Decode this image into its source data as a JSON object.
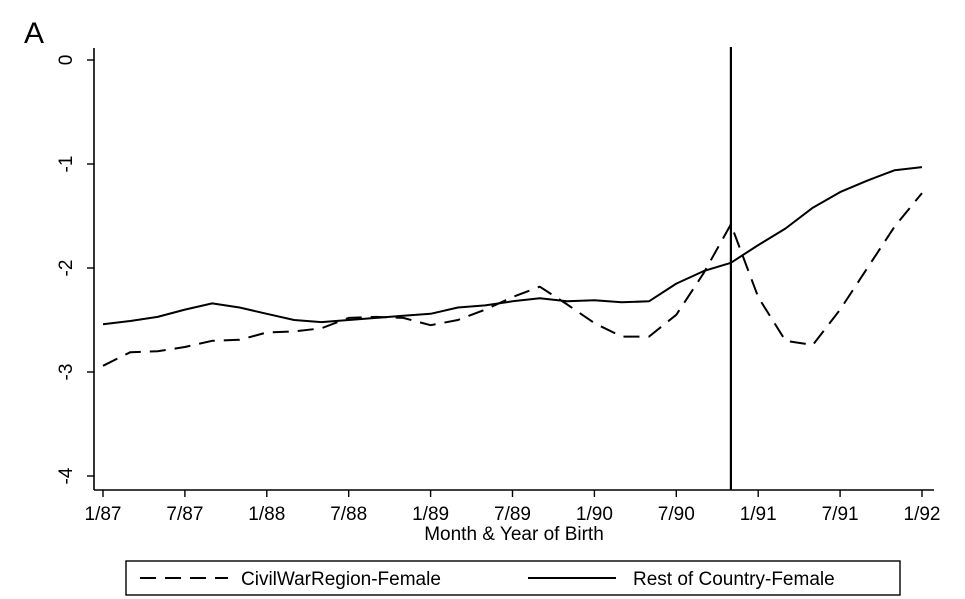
{
  "chart_data": {
    "type": "line",
    "panel_label": "A",
    "title": "",
    "xlabel": "Month & Year of Birth",
    "ylabel": "",
    "x_ticks": [
      "1/87",
      "7/87",
      "1/88",
      "7/88",
      "1/89",
      "7/89",
      "1/90",
      "7/90",
      "1/91",
      "7/91",
      "1/92"
    ],
    "xlim": [
      "1/87",
      "1/92"
    ],
    "y_ticks": [
      "0",
      "-1",
      "-2",
      "-3",
      "-4"
    ],
    "ylim": [
      -4,
      0
    ],
    "grid": false,
    "legend_position": "bottom",
    "vertical_line": {
      "x": "11/90"
    },
    "series": [
      {
        "name": "CivilWarRegion-Female",
        "style": "dashed",
        "color": "#000000",
        "points": [
          [
            "1/87",
            -2.94
          ],
          [
            "3/87",
            -2.81
          ],
          [
            "5/87",
            -2.8
          ],
          [
            "7/87",
            -2.76
          ],
          [
            "9/87",
            -2.7
          ],
          [
            "11/87",
            -2.69
          ],
          [
            "1/88",
            -2.62
          ],
          [
            "3/88",
            -2.61
          ],
          [
            "5/88",
            -2.58
          ],
          [
            "7/88",
            -2.48
          ],
          [
            "9/88",
            -2.47
          ],
          [
            "11/88",
            -2.48
          ],
          [
            "1/89",
            -2.55
          ],
          [
            "3/89",
            -2.5
          ],
          [
            "5/89",
            -2.4
          ],
          [
            "7/89",
            -2.28
          ],
          [
            "9/89",
            -2.18
          ],
          [
            "11/89",
            -2.35
          ],
          [
            "1/90",
            -2.53
          ],
          [
            "3/90",
            -2.66
          ],
          [
            "5/90",
            -2.66
          ],
          [
            "7/90",
            -2.45
          ],
          [
            "9/90",
            -2.05
          ],
          [
            "11/90",
            -1.58
          ],
          [
            "1/91",
            -2.28
          ],
          [
            "3/91",
            -2.7
          ],
          [
            "5/91",
            -2.74
          ],
          [
            "7/91",
            -2.4
          ],
          [
            "9/91",
            -2.0
          ],
          [
            "11/91",
            -1.6
          ],
          [
            "1/92",
            -1.28
          ]
        ]
      },
      {
        "name": "Rest of Country-Female",
        "style": "solid",
        "color": "#000000",
        "points": [
          [
            "1/87",
            -2.54
          ],
          [
            "3/87",
            -2.51
          ],
          [
            "5/87",
            -2.47
          ],
          [
            "7/87",
            -2.4
          ],
          [
            "9/87",
            -2.34
          ],
          [
            "11/87",
            -2.38
          ],
          [
            "1/88",
            -2.44
          ],
          [
            "3/88",
            -2.5
          ],
          [
            "5/88",
            -2.52
          ],
          [
            "7/88",
            -2.5
          ],
          [
            "9/88",
            -2.48
          ],
          [
            "11/88",
            -2.46
          ],
          [
            "1/89",
            -2.44
          ],
          [
            "3/89",
            -2.38
          ],
          [
            "5/89",
            -2.36
          ],
          [
            "7/89",
            -2.32
          ],
          [
            "9/89",
            -2.29
          ],
          [
            "11/89",
            -2.32
          ],
          [
            "1/90",
            -2.31
          ],
          [
            "3/90",
            -2.33
          ],
          [
            "5/90",
            -2.32
          ],
          [
            "7/90",
            -2.15
          ],
          [
            "9/90",
            -2.03
          ],
          [
            "11/90",
            -1.95
          ],
          [
            "1/91",
            -1.78
          ],
          [
            "3/91",
            -1.62
          ],
          [
            "5/91",
            -1.42
          ],
          [
            "7/91",
            -1.27
          ],
          [
            "9/91",
            -1.16
          ],
          [
            "11/91",
            -1.06
          ],
          [
            "1/92",
            -1.03
          ]
        ]
      }
    ]
  }
}
